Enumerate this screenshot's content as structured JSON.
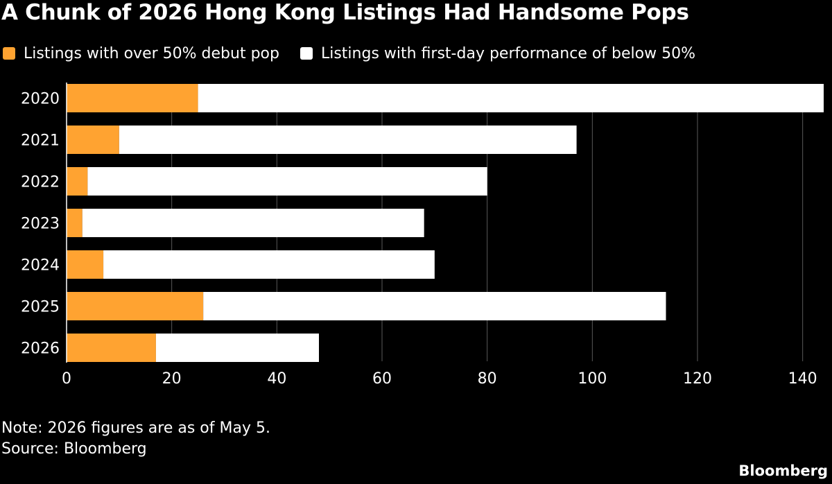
{
  "title": "A Chunk of 2026 Hong Kong Listings Had Handsome Pops",
  "note": "Note: 2026 figures are as of May 5.",
  "source": "Source: Bloomberg",
  "brand": "Bloomberg",
  "chart_data": {
    "type": "bar",
    "orientation": "horizontal",
    "stacked": true,
    "categories": [
      "2020",
      "2021",
      "2022",
      "2023",
      "2024",
      "2025",
      "2026"
    ],
    "series": [
      {
        "name": "Listings with over 50% debut pop",
        "color": "#ffa331",
        "values": [
          25,
          10,
          4,
          3,
          7,
          26,
          17
        ]
      },
      {
        "name": "Listings with first-day performance of below 50%",
        "color": "#ffffff",
        "values": [
          119,
          87,
          76,
          65,
          63,
          88,
          31
        ]
      }
    ],
    "xlim": [
      0,
      144
    ],
    "xticks": [
      0,
      20,
      40,
      60,
      80,
      100,
      120,
      140
    ],
    "grid": true,
    "legend_position": "top-left"
  }
}
